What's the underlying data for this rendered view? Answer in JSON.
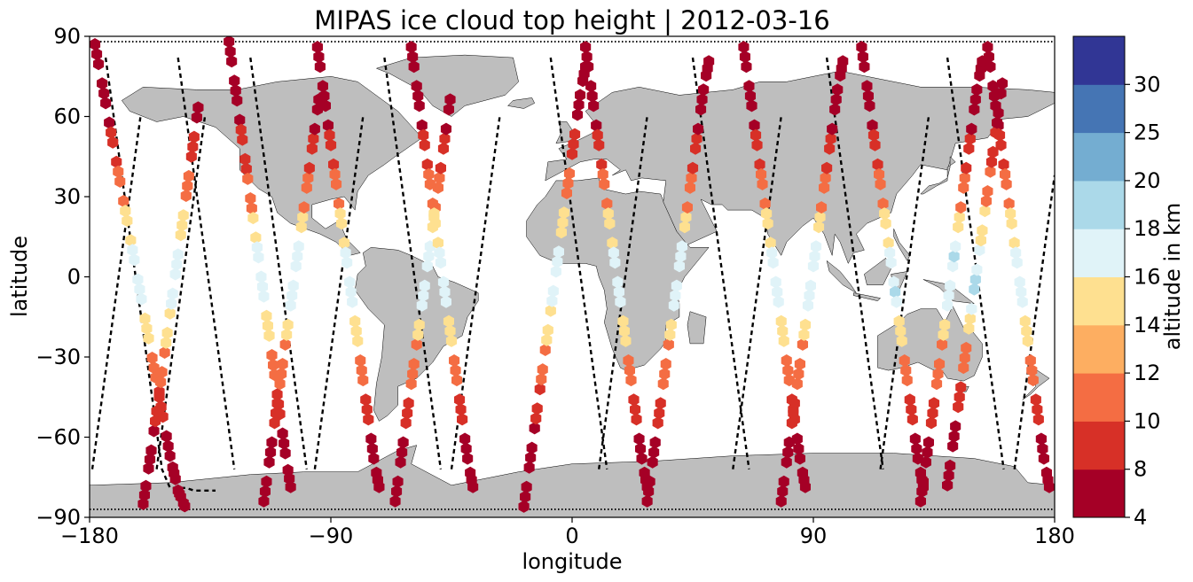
{
  "chart_data": {
    "type": "scatter",
    "title": "MIPAS ice cloud top height | 2012-03-16",
    "xlabel": "longitude",
    "ylabel": "latitude",
    "xlim": [
      -180,
      180
    ],
    "ylim": [
      -90,
      90
    ],
    "xticks": [
      -180,
      -90,
      0,
      90,
      180
    ],
    "yticks": [
      -90,
      -60,
      -30,
      0,
      30,
      60,
      90
    ],
    "xtick_labels": [
      "−180",
      "−90",
      "0",
      "90",
      "180"
    ],
    "ytick_labels": [
      "−90",
      "−60",
      "−30",
      "0",
      "30",
      "60",
      "90"
    ],
    "grid": false,
    "map_projection": "plate-carree",
    "colorbar": {
      "label": "altitude in km",
      "boundaries": [
        4,
        8,
        10,
        12,
        14,
        16,
        18,
        20,
        25,
        30
      ],
      "tick_labels": [
        "4",
        "8",
        "10",
        "12",
        "14",
        "16",
        "18",
        "20",
        "25",
        "30"
      ],
      "colors": [
        "#a50026",
        "#d73027",
        "#f46d43",
        "#fdae61",
        "#fee090",
        "#e0f3f8",
        "#abd9e9",
        "#74add1",
        "#4575b4",
        "#313695"
      ]
    },
    "colors": {
      "land": "#bebebe",
      "coast": "#000000",
      "track": "#000000"
    },
    "tracks": [
      {
        "lon": [
          -174,
          -171,
          -168,
          -165,
          -162,
          -159,
          -156,
          -153,
          -150,
          -147,
          -144,
          -141,
          -138,
          -135,
          -133
        ],
        "lat": [
          82,
          60,
          38,
          16,
          -6,
          -28,
          -50,
          -72,
          -79,
          -79,
          -79,
          -80,
          -80,
          -80,
          -80
        ]
      },
      {
        "lon": [
          -179,
          -176,
          -173,
          -170,
          -167,
          -164,
          -161
        ],
        "lat": [
          -72,
          -50,
          -28,
          -6,
          16,
          38,
          60
        ]
      },
      {
        "lon": [
          -147,
          -144,
          -141,
          -138,
          -135,
          -132,
          -129,
          -126
        ],
        "lat": [
          82,
          60,
          38,
          16,
          -6,
          -28,
          -50,
          -72
        ]
      },
      {
        "lon": [
          -155,
          -152,
          -149,
          -146,
          -143,
          -140,
          -137
        ],
        "lat": [
          -72,
          -50,
          -28,
          -6,
          16,
          38,
          60
        ]
      },
      {
        "lon": [
          -120,
          -117,
          -114,
          -111,
          -108,
          -105,
          -102,
          -99
        ],
        "lat": [
          82,
          60,
          38,
          16,
          -6,
          -28,
          -50,
          -72
        ]
      },
      {
        "lon": [
          -96,
          -93,
          -90,
          -87,
          -84,
          -81,
          -78
        ],
        "lat": [
          -72,
          -50,
          -28,
          -6,
          16,
          38,
          60
        ]
      },
      {
        "lon": [
          -70,
          -67,
          -64,
          -61,
          -58,
          -55,
          -52,
          -49
        ],
        "lat": [
          82,
          60,
          38,
          16,
          -6,
          -28,
          -50,
          -72
        ]
      },
      {
        "lon": [
          -45,
          -42,
          -39,
          -36,
          -33,
          -30,
          -27
        ],
        "lat": [
          -72,
          -50,
          -28,
          -6,
          16,
          38,
          60
        ]
      },
      {
        "lon": [
          -8,
          -5,
          -2,
          1,
          4,
          7,
          10,
          13
        ],
        "lat": [
          82,
          60,
          38,
          16,
          -6,
          -28,
          -50,
          -72
        ]
      },
      {
        "lon": [
          10,
          13,
          16,
          19,
          22,
          25,
          28
        ],
        "lat": [
          -72,
          -50,
          -28,
          -6,
          16,
          38,
          60
        ]
      },
      {
        "lon": [
          45,
          48,
          51,
          54,
          57,
          60,
          63,
          66
        ],
        "lat": [
          82,
          60,
          38,
          16,
          -6,
          -28,
          -50,
          -72
        ]
      },
      {
        "lon": [
          60,
          63,
          66,
          69,
          72,
          75,
          78
        ],
        "lat": [
          -72,
          -50,
          -28,
          -6,
          16,
          38,
          60
        ]
      },
      {
        "lon": [
          95,
          98,
          101,
          104,
          107,
          110,
          113,
          116
        ],
        "lat": [
          82,
          60,
          38,
          16,
          -6,
          -28,
          -50,
          -72
        ]
      },
      {
        "lon": [
          115,
          118,
          121,
          124,
          127,
          130,
          133
        ],
        "lat": [
          -72,
          -50,
          -28,
          -6,
          16,
          38,
          60
        ]
      },
      {
        "lon": [
          140,
          143,
          146,
          149,
          152,
          155,
          158,
          161
        ],
        "lat": [
          82,
          60,
          38,
          16,
          -6,
          -28,
          -50,
          -72
        ]
      },
      {
        "lon": [
          165,
          168,
          171,
          174,
          177,
          180
        ],
        "lat": [
          -72,
          -50,
          -28,
          -6,
          16,
          38
        ]
      }
    ],
    "ice_tracks": [
      {
        "lon": [
          -178,
          -174,
          -170,
          -166,
          -162,
          -158,
          -154,
          -150,
          -147,
          -144
        ],
        "lat": [
          87,
          65,
          43,
          21,
          -1,
          -23,
          -45,
          -67,
          -80,
          -87
        ]
      },
      {
        "lon": [
          -160,
          -157,
          -154,
          -151,
          -148,
          -145,
          -142,
          -139
        ],
        "lat": [
          -85,
          -65,
          -43,
          -21,
          1,
          23,
          45,
          67
        ]
      },
      {
        "lon": [
          -128,
          -125,
          -122,
          -119,
          -116,
          -113,
          -110,
          -107,
          -104
        ],
        "lat": [
          88,
          66,
          44,
          22,
          0,
          -22,
          -44,
          -66,
          -85
        ]
      },
      {
        "lon": [
          -115,
          -112,
          -109,
          -106,
          -103,
          -100,
          -97,
          -94
        ],
        "lat": [
          -84,
          -62,
          -40,
          -18,
          4,
          26,
          48,
          70
        ]
      },
      {
        "lon": [
          -95,
          -92,
          -89,
          -86,
          -83,
          -80,
          -77,
          -74,
          -71
        ],
        "lat": [
          86,
          64,
          42,
          20,
          -2,
          -24,
          -46,
          -68,
          -84
        ]
      },
      {
        "lon": [
          -66,
          -63,
          -60,
          -57,
          -54,
          -51,
          -48,
          -45
        ],
        "lat": [
          -84,
          -62,
          -40,
          -18,
          4,
          26,
          48,
          70
        ]
      },
      {
        "lon": [
          -60,
          -57,
          -54,
          -51,
          -48,
          -45,
          -42,
          -39,
          -36
        ],
        "lat": [
          86,
          64,
          42,
          20,
          -2,
          -24,
          -46,
          -68,
          -84
        ]
      },
      {
        "lon": [
          -18,
          -15,
          -12,
          -9,
          -6,
          -3,
          0,
          3,
          6
        ],
        "lat": [
          -86,
          -64,
          -42,
          -20,
          2,
          24,
          46,
          68,
          84
        ]
      },
      {
        "lon": [
          5,
          8,
          11,
          14,
          17,
          20,
          23,
          26,
          29
        ],
        "lat": [
          86,
          64,
          42,
          20,
          -2,
          -24,
          -46,
          -68,
          -84
        ]
      },
      {
        "lon": [
          28,
          31,
          34,
          37,
          40,
          43,
          46,
          49,
          52
        ],
        "lat": [
          -84,
          -62,
          -40,
          -18,
          4,
          26,
          48,
          70,
          86
        ]
      },
      {
        "lon": [
          64,
          67,
          70,
          73,
          76,
          79,
          82,
          85,
          88
        ],
        "lat": [
          86,
          64,
          42,
          20,
          -2,
          -24,
          -46,
          -68,
          -84
        ]
      },
      {
        "lon": [
          78,
          81,
          84,
          87,
          90,
          93,
          96,
          99,
          102
        ],
        "lat": [
          -84,
          -62,
          -40,
          -18,
          4,
          26,
          48,
          70,
          86
        ]
      },
      {
        "lon": [
          108,
          111,
          114,
          117,
          120,
          123,
          126,
          129,
          132
        ],
        "lat": [
          86,
          64,
          42,
          20,
          -2,
          -24,
          -46,
          -68,
          -84
        ]
      },
      {
        "lon": [
          130,
          133,
          136,
          139,
          142,
          145,
          148,
          151,
          154
        ],
        "lat": [
          -84,
          -62,
          -40,
          -18,
          4,
          26,
          48,
          70,
          86
        ]
      },
      {
        "lon": [
          155,
          158,
          161,
          164,
          167,
          170,
          173,
          176,
          179
        ],
        "lat": [
          86,
          64,
          42,
          20,
          -2,
          -24,
          -46,
          -68,
          -84
        ]
      },
      {
        "lon": [
          140,
          143,
          146,
          149,
          152,
          155,
          158,
          161
        ],
        "lat": [
          -78,
          -56,
          -34,
          -12,
          10,
          32,
          54,
          76
        ]
      }
    ]
  }
}
